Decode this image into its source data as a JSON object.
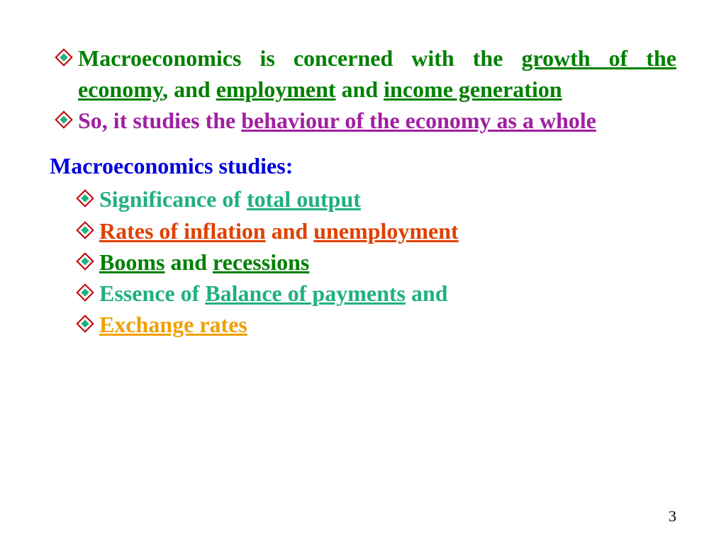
{
  "colors": {
    "green": "#008000",
    "purple": "#a020a0",
    "blue": "#0000e0",
    "teal": "#20b080",
    "orange_red": "#e04000",
    "orange": "#f0a000",
    "bullet_outer": "#c00000",
    "bullet_inner": "#20b080"
  },
  "fontsize_body": 32,
  "fontsize_page": 22,
  "point1": {
    "p1_a": "Macroeconomics is concerned with the ",
    "p1_b": "growth of the economy",
    "p1_c": ", and ",
    "p1_d": "employment",
    "p1_e": " and ",
    "p1_f": "income generation"
  },
  "point2": {
    "p2_a": "So, it studies the ",
    "p2_b": "behaviour of the economy as a whole"
  },
  "studies_header": "Macroeconomics studies:",
  "studies": [
    {
      "style": "teal",
      "a": "Significance of ",
      "b": "total output",
      "c": ""
    },
    {
      "style": "orange_red",
      "a": "",
      "b": "Rates of inflation",
      "c": " and ",
      "d": "unemployment"
    },
    {
      "style": "green",
      "a": "",
      "b": "Booms",
      "c": " and ",
      "d": "recessions"
    },
    {
      "style": "teal",
      "a": "Essence of ",
      "b": "Balance of payments",
      "c": " and"
    },
    {
      "style": "orange",
      "a": "",
      "b": "Exchange rates",
      "c": ""
    }
  ],
  "page_number": "3"
}
